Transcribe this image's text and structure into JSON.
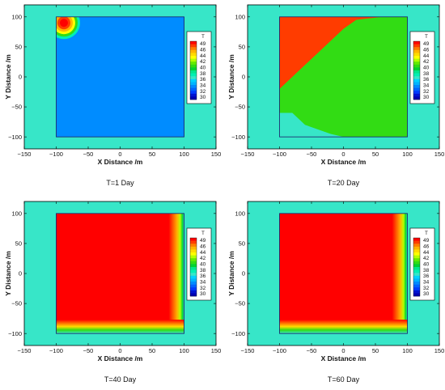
{
  "chart_data": {
    "type": "heatmap",
    "shared": {
      "xlabel": "X Distance /m",
      "ylabel": "Y Distance /m",
      "xlim": [
        -150,
        150
      ],
      "ylim": [
        -120,
        120
      ],
      "xticks": [
        -150,
        -100,
        -50,
        0,
        50,
        100,
        150
      ],
      "yticks": [
        -100,
        -50,
        0,
        50,
        100
      ],
      "domain_square": {
        "x": [
          -100,
          100
        ],
        "y": [
          -100,
          100
        ]
      },
      "background_value": 37,
      "legend": {
        "title": "T",
        "levels": [
          49,
          46,
          44,
          42,
          40,
          38,
          36,
          34,
          32,
          30
        ],
        "colors": {
          "49": "#ff0000",
          "48": "#ff3c00",
          "47": "#ff7d00",
          "46": "#ffb400",
          "45": "#ffdc00",
          "44": "#ffff00",
          "43": "#b4ff00",
          "42": "#64eb00",
          "41": "#32dc14",
          "40": "#00d232",
          "39": "#00e68c",
          "38": "#00f0b4",
          "37": "#37e6c8",
          "36": "#00d2ff",
          "35": "#00b4ff",
          "34": "#008cff",
          "33": "#0064ff",
          "32": "#003cff",
          "31": "#0014d2",
          "30": "#0000b4"
        },
        "placement": "right"
      }
    },
    "panels": [
      {
        "caption": "T=1 Day",
        "interior_value": 33.5,
        "hotspot": {
          "x": -88,
          "y": 90,
          "value": 49
        }
      },
      {
        "caption": "T=20 Day",
        "interior_value": 48,
        "regions": [
          {
            "description": "green",
            "value": 41,
            "polygon": [
              [
                -100,
                -20
              ],
              [
                -80,
                0
              ],
              [
                -60,
                20
              ],
              [
                -40,
                40
              ],
              [
                -20,
                60
              ],
              [
                0,
                80
              ],
              [
                20,
                95
              ],
              [
                60,
                100
              ],
              [
                100,
                100
              ],
              [
                100,
                -100
              ],
              [
                -100,
                -100
              ]
            ]
          },
          {
            "description": "cool-bottom-left",
            "value": 37,
            "polygon": [
              [
                -100,
                -100
              ],
              [
                -100,
                -60
              ],
              [
                -80,
                -60
              ],
              [
                -60,
                -80
              ],
              [
                -20,
                -95
              ],
              [
                0,
                -100
              ]
            ]
          }
        ]
      },
      {
        "caption": "T=40 Day",
        "interior_value": 49,
        "edge_bands": [
          "right",
          "bottom"
        ]
      },
      {
        "caption": "T=60 Day",
        "interior_value": 49,
        "edge_bands": [
          "right",
          "bottom"
        ]
      }
    ]
  }
}
